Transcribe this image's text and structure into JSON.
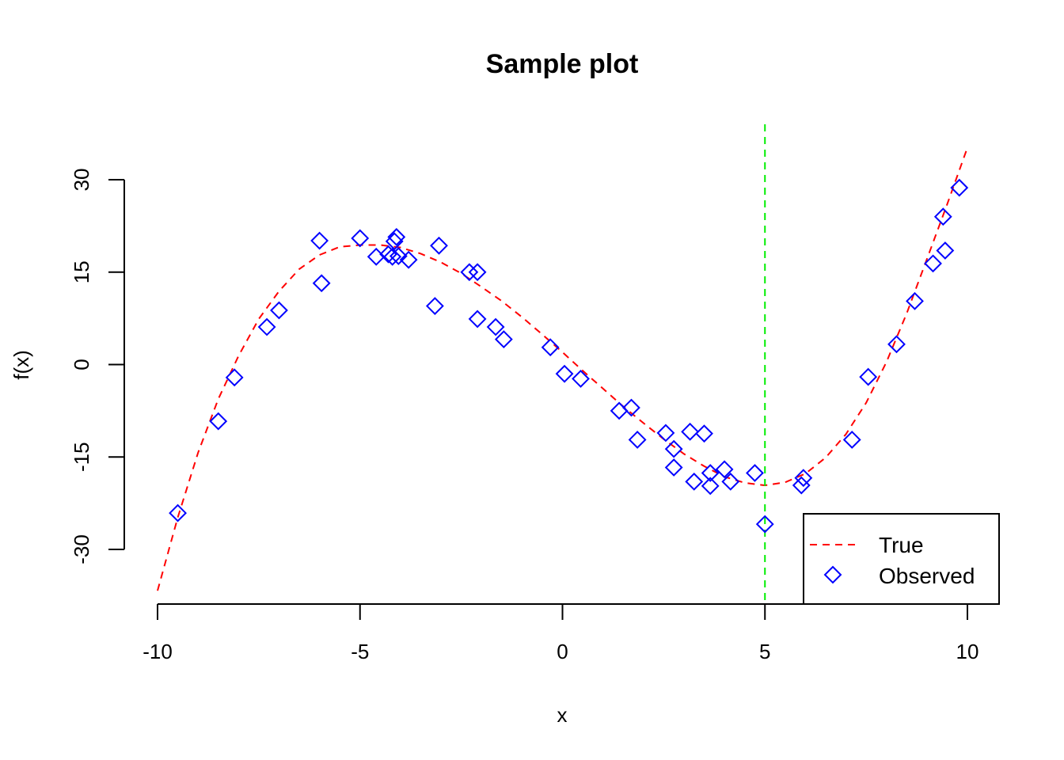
{
  "chart_data": {
    "type": "scatter",
    "title": "Sample plot",
    "xlabel": "x",
    "ylabel": "f(x)",
    "xlim": [
      -10,
      10
    ],
    "ylim": [
      -30,
      30
    ],
    "x_ticks": [
      -10,
      -5,
      0,
      5,
      10
    ],
    "y_ticks": [
      -30,
      -15,
      0,
      15,
      30
    ],
    "x_tick_labels": [
      "-10",
      "-5",
      "0",
      "5",
      "10"
    ],
    "y_tick_labels": [
      "-30",
      "-15",
      "0",
      "15",
      "30"
    ],
    "grid": false,
    "legend_position": "bottom-right",
    "colors": {
      "true": "#ff0000",
      "observed": "#0000ff",
      "vline": "#00ee00"
    },
    "vline_x": 5,
    "series": [
      {
        "name": "True",
        "style": "dashed-line",
        "x": [
          -10,
          -9.5,
          -9,
          -8.5,
          -8,
          -7.5,
          -7,
          -6.5,
          -6,
          -5.5,
          -5,
          -4.5,
          -4,
          -3.5,
          -3,
          -2.5,
          -2,
          -1.5,
          -1,
          -0.5,
          0,
          0.5,
          1,
          1.5,
          2,
          2.5,
          3,
          3.5,
          4,
          4.5,
          5,
          5.5,
          6,
          6.5,
          7,
          7.5,
          8,
          8.5,
          9,
          9.5,
          10
        ],
        "y": [
          -36.7,
          -24.8,
          -14.3,
          -5.6,
          1.4,
          7.4,
          11.9,
          15.5,
          17.8,
          19.1,
          19.4,
          19.4,
          19.0,
          18.0,
          16.6,
          14.8,
          12.6,
          10.3,
          7.7,
          4.9,
          2.0,
          -1.0,
          -3.9,
          -6.8,
          -9.5,
          -12.1,
          -14.5,
          -16.5,
          -18.2,
          -19.2,
          -19.6,
          -19.1,
          -17.7,
          -15.1,
          -11.3,
          -6.2,
          0.4,
          8.3,
          17.1,
          26.0,
          35.2
        ]
      },
      {
        "name": "Observed",
        "style": "diamond-markers",
        "x": [
          -9.5,
          -8.5,
          -8.1,
          -7.3,
          -7.0,
          -6.0,
          -5.95,
          -5.0,
          -4.6,
          -4.3,
          -4.2,
          -4.15,
          -4.1,
          -4.05,
          -3.8,
          -3.15,
          -3.05,
          -2.3,
          -2.1,
          -2.1,
          -1.65,
          -1.45,
          -0.3,
          0.05,
          0.45,
          1.4,
          1.7,
          1.85,
          2.55,
          2.75,
          2.75,
          3.15,
          3.25,
          3.5,
          3.65,
          3.65,
          4.0,
          4.15,
          4.75,
          5.0,
          5.9,
          5.95,
          7.15,
          7.55,
          8.25,
          8.7,
          9.15,
          9.4,
          9.45,
          9.8
        ],
        "y": [
          -24.1,
          -9.2,
          -2.1,
          6.1,
          8.8,
          20.1,
          13.2,
          20.5,
          17.5,
          17.9,
          17.5,
          20.0,
          20.7,
          17.6,
          17.0,
          9.5,
          19.3,
          15.0,
          15.0,
          7.4,
          6.1,
          4.1,
          2.8,
          -1.5,
          -2.3,
          -7.5,
          -7.0,
          -12.2,
          -11.1,
          -13.7,
          -16.7,
          -10.9,
          -19.0,
          -11.2,
          -17.6,
          -19.7,
          -17.0,
          -19.0,
          -17.6,
          -25.9,
          -19.6,
          -18.4,
          -12.2,
          -2.0,
          3.3,
          10.3,
          16.4,
          24.0,
          18.5,
          28.7
        ]
      }
    ]
  }
}
